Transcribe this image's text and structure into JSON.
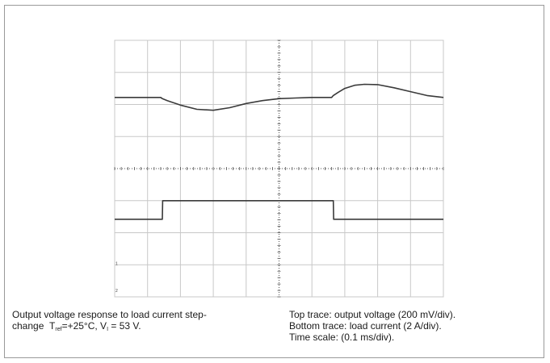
{
  "caption_left": {
    "line1": "Output voltage response to load current step-",
    "line2_prefix": "change",
    "t_symbol": "T",
    "t_sub": "ref",
    "t_value": "=+25°C, V",
    "v_sub": "I",
    "v_value": " = 53 V."
  },
  "caption_right": {
    "line1": "Top trace: output voltage (200 mV/div).",
    "line2": "Bottom trace: load current (2 A/div).",
    "line3": "Time scale: (0.1 ms/div)."
  },
  "colors": {
    "grid": "#c8c8c8",
    "grid_center": "#555555",
    "trace": "#3a3a3a",
    "frame": "#9a9a9a"
  },
  "chart_data": {
    "type": "line",
    "title": "",
    "xlabel": "",
    "ylabel": "",
    "divisions": {
      "x": 10,
      "y": 8
    },
    "x_scale": "0.1 ms/div",
    "series": [
      {
        "name": "Top trace: output voltage (200 mV/div)",
        "x": [
          0,
          1.4,
          1.45,
          1.6,
          2.0,
          2.5,
          3.0,
          3.5,
          4.0,
          4.5,
          5.0,
          5.5,
          6.0,
          6.6,
          6.65,
          6.8,
          7.0,
          7.3,
          7.6,
          8.0,
          8.5,
          9.0,
          9.5,
          10.0
        ],
        "y": [
          6.22,
          6.22,
          6.18,
          6.12,
          5.98,
          5.85,
          5.82,
          5.9,
          6.03,
          6.12,
          6.18,
          6.2,
          6.22,
          6.22,
          6.28,
          6.38,
          6.5,
          6.6,
          6.63,
          6.62,
          6.52,
          6.4,
          6.28,
          6.22
        ]
      },
      {
        "name": "Bottom trace: load current (2 A/div)",
        "x": [
          0,
          1.45,
          1.46,
          6.65,
          6.66,
          10.0
        ],
        "y": [
          2.42,
          2.42,
          3.0,
          3.0,
          2.42,
          2.42
        ]
      }
    ],
    "markers": [
      "1",
      "2"
    ]
  }
}
